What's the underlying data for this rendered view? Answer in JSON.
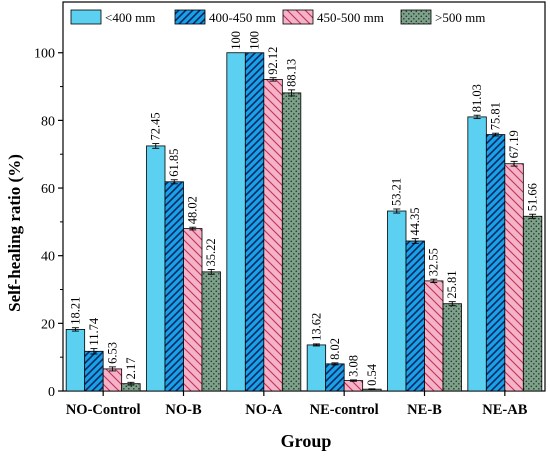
{
  "chart_data": {
    "type": "bar",
    "xlabel": "Group",
    "ylabel": "Self-healing ratio (%)",
    "ylim": [
      0,
      115
    ],
    "yticks": [
      0,
      20,
      40,
      60,
      80,
      100
    ],
    "grid": false,
    "legend_position": "top",
    "categories": [
      "NO-Control",
      "NO-B",
      "NO-A",
      "NE-control",
      "NE-B",
      "NE-AB"
    ],
    "series": [
      {
        "name": "<400 mm",
        "color": "#5bd0f0",
        "pattern": "solid",
        "values": [
          18.21,
          72.45,
          100,
          13.62,
          53.21,
          81.03
        ],
        "errors": [
          0.5,
          0.7,
          0,
          0.3,
          0.6,
          0.5
        ]
      },
      {
        "name": "400-450 mm",
        "color": "#1aa0e8",
        "pattern": "hatch-dense",
        "values": [
          11.74,
          61.85,
          100,
          8.02,
          44.35,
          75.81
        ],
        "errors": [
          0.8,
          0.6,
          0,
          0.3,
          0.7,
          0.4
        ]
      },
      {
        "name": "450-500 mm",
        "color": "#f5b3c8",
        "pattern": "hatch-sparse",
        "values": [
          6.53,
          48.02,
          92.12,
          3.08,
          32.55,
          67.19
        ],
        "errors": [
          0.6,
          0.4,
          0.5,
          0.2,
          0.5,
          0.7
        ]
      },
      {
        "name": ">500 mm",
        "color": "#7fa08a",
        "pattern": "dots",
        "values": [
          2.17,
          35.22,
          88.13,
          0.54,
          25.81,
          51.66
        ],
        "errors": [
          0.4,
          0.7,
          0.9,
          0.1,
          0.6,
          0.6
        ]
      }
    ],
    "legend_labels": [
      "<400 mm",
      "400-450 mm",
      "450-500 mm",
      ">500 mm"
    ],
    "value_labels": [
      [
        "18.21",
        "72.45",
        "100",
        "13.62",
        "53.21",
        "81.03"
      ],
      [
        "11.74",
        "61.85",
        "100",
        "8.02",
        "44.35",
        "75.81"
      ],
      [
        "6.53",
        "48.02",
        "92.12",
        "3.08",
        "32.55",
        "67.19"
      ],
      [
        "2.17",
        "35.22",
        "88.13",
        "0.54",
        "25.81",
        "51.66"
      ]
    ]
  }
}
